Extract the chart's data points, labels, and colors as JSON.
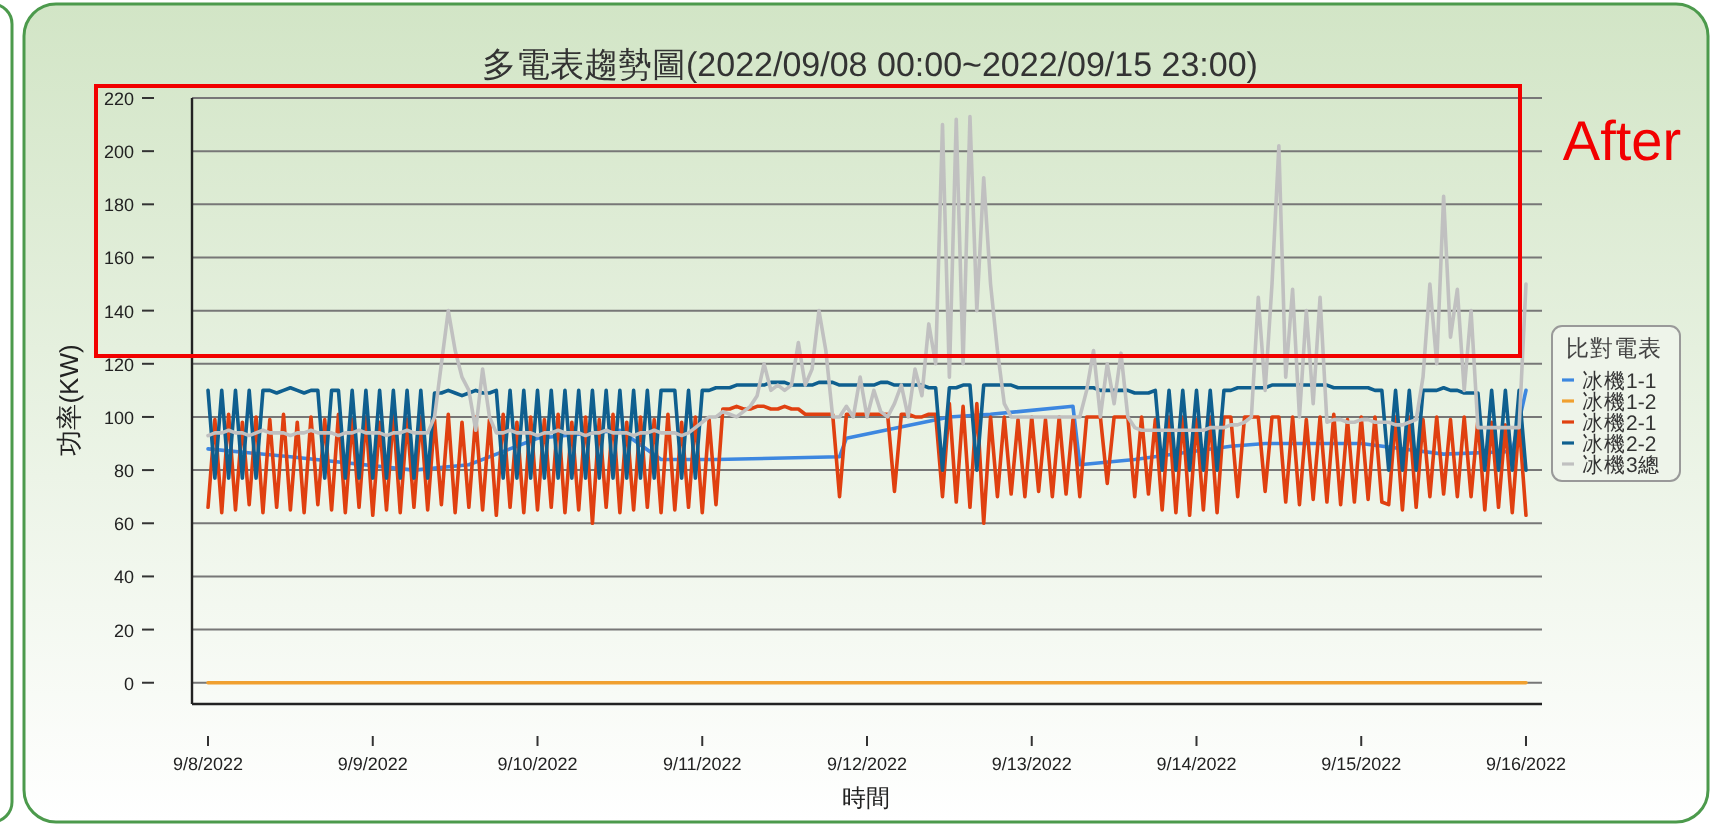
{
  "chart_data": {
    "type": "line",
    "title": "多電表趨勢圖(2022/09/08 00:00~2022/09/15 23:00)",
    "xlabel": "時間",
    "ylabel": "功率(KW)",
    "legend_title": "比對電表",
    "legend": "right",
    "grid": "y",
    "annotations": [
      "After"
    ],
    "xlim": [
      "2022-09-07T21:40",
      "2022-09-16T02:20"
    ],
    "xticks": [
      {
        "value": "2022-09-08",
        "label": "9/8/2022"
      },
      {
        "value": "2022-09-09",
        "label": "9/9/2022"
      },
      {
        "value": "2022-09-10",
        "label": "9/10/2022"
      },
      {
        "value": "2022-09-11",
        "label": "9/11/2022"
      },
      {
        "value": "2022-09-12",
        "label": "9/12/2022"
      },
      {
        "value": "2022-09-13",
        "label": "9/13/2022"
      },
      {
        "value": "2022-09-14",
        "label": "9/14/2022"
      },
      {
        "value": "2022-09-15",
        "label": "9/15/2022"
      },
      {
        "value": "2022-09-16",
        "label": "9/16/2022"
      }
    ],
    "ylim": [
      -8,
      220
    ],
    "yticks": [
      0,
      20,
      40,
      60,
      80,
      100,
      120,
      140,
      160,
      180,
      200,
      220
    ],
    "x": [
      "2022-09-08T00:00",
      "2022-09-08T01:00",
      "2022-09-08T02:00",
      "2022-09-08T03:00",
      "2022-09-08T04:00",
      "2022-09-08T05:00",
      "2022-09-08T06:00",
      "2022-09-08T07:00",
      "2022-09-08T08:00",
      "2022-09-08T09:00",
      "2022-09-08T10:00",
      "2022-09-08T11:00",
      "2022-09-08T12:00",
      "2022-09-08T13:00",
      "2022-09-08T14:00",
      "2022-09-08T15:00",
      "2022-09-08T16:00",
      "2022-09-08T17:00",
      "2022-09-08T18:00",
      "2022-09-08T19:00",
      "2022-09-08T20:00",
      "2022-09-08T21:00",
      "2022-09-08T22:00",
      "2022-09-08T23:00",
      "2022-09-09T00:00",
      "2022-09-09T01:00",
      "2022-09-09T02:00",
      "2022-09-09T03:00",
      "2022-09-09T04:00",
      "2022-09-09T05:00",
      "2022-09-09T06:00",
      "2022-09-09T07:00",
      "2022-09-09T08:00",
      "2022-09-09T09:00",
      "2022-09-09T10:00",
      "2022-09-09T11:00",
      "2022-09-09T12:00",
      "2022-09-09T13:00",
      "2022-09-09T14:00",
      "2022-09-09T15:00",
      "2022-09-09T16:00",
      "2022-09-09T17:00",
      "2022-09-09T18:00",
      "2022-09-09T19:00",
      "2022-09-09T20:00",
      "2022-09-09T21:00",
      "2022-09-09T22:00",
      "2022-09-09T23:00",
      "2022-09-10T00:00",
      "2022-09-10T01:00",
      "2022-09-10T02:00",
      "2022-09-10T03:00",
      "2022-09-10T04:00",
      "2022-09-10T05:00",
      "2022-09-10T06:00",
      "2022-09-10T07:00",
      "2022-09-10T08:00",
      "2022-09-10T09:00",
      "2022-09-10T10:00",
      "2022-09-10T11:00",
      "2022-09-10T12:00",
      "2022-09-10T13:00",
      "2022-09-10T14:00",
      "2022-09-10T15:00",
      "2022-09-10T16:00",
      "2022-09-10T17:00",
      "2022-09-10T18:00",
      "2022-09-10T19:00",
      "2022-09-10T20:00",
      "2022-09-10T21:00",
      "2022-09-10T22:00",
      "2022-09-10T23:00",
      "2022-09-11T00:00",
      "2022-09-11T01:00",
      "2022-09-11T02:00",
      "2022-09-11T03:00",
      "2022-09-11T04:00",
      "2022-09-11T05:00",
      "2022-09-11T06:00",
      "2022-09-11T07:00",
      "2022-09-11T08:00",
      "2022-09-11T09:00",
      "2022-09-11T10:00",
      "2022-09-11T11:00",
      "2022-09-11T12:00",
      "2022-09-11T13:00",
      "2022-09-11T14:00",
      "2022-09-11T15:00",
      "2022-09-11T16:00",
      "2022-09-11T17:00",
      "2022-09-11T18:00",
      "2022-09-11T19:00",
      "2022-09-11T20:00",
      "2022-09-11T21:00",
      "2022-09-11T22:00",
      "2022-09-11T23:00",
      "2022-09-12T00:00",
      "2022-09-12T01:00",
      "2022-09-12T02:00",
      "2022-09-12T03:00",
      "2022-09-12T04:00",
      "2022-09-12T05:00",
      "2022-09-12T06:00",
      "2022-09-12T07:00",
      "2022-09-12T08:00",
      "2022-09-12T09:00",
      "2022-09-12T10:00",
      "2022-09-12T11:00",
      "2022-09-12T12:00",
      "2022-09-12T13:00",
      "2022-09-12T14:00",
      "2022-09-12T15:00",
      "2022-09-12T16:00",
      "2022-09-12T17:00",
      "2022-09-12T18:00",
      "2022-09-12T19:00",
      "2022-09-12T20:00",
      "2022-09-12T21:00",
      "2022-09-12T22:00",
      "2022-09-12T23:00",
      "2022-09-13T00:00",
      "2022-09-13T01:00",
      "2022-09-13T02:00",
      "2022-09-13T03:00",
      "2022-09-13T04:00",
      "2022-09-13T05:00",
      "2022-09-13T06:00",
      "2022-09-13T07:00",
      "2022-09-13T08:00",
      "2022-09-13T09:00",
      "2022-09-13T10:00",
      "2022-09-13T11:00",
      "2022-09-13T12:00",
      "2022-09-13T13:00",
      "2022-09-13T14:00",
      "2022-09-13T15:00",
      "2022-09-13T16:00",
      "2022-09-13T17:00",
      "2022-09-13T18:00",
      "2022-09-13T19:00",
      "2022-09-13T20:00",
      "2022-09-13T21:00",
      "2022-09-13T22:00",
      "2022-09-13T23:00",
      "2022-09-14T00:00",
      "2022-09-14T01:00",
      "2022-09-14T02:00",
      "2022-09-14T03:00",
      "2022-09-14T04:00",
      "2022-09-14T05:00",
      "2022-09-14T06:00",
      "2022-09-14T07:00",
      "2022-09-14T08:00",
      "2022-09-14T09:00",
      "2022-09-14T10:00",
      "2022-09-14T11:00",
      "2022-09-14T12:00",
      "2022-09-14T13:00",
      "2022-09-14T14:00",
      "2022-09-14T15:00",
      "2022-09-14T16:00",
      "2022-09-14T17:00",
      "2022-09-14T18:00",
      "2022-09-14T19:00",
      "2022-09-14T20:00",
      "2022-09-14T21:00",
      "2022-09-14T22:00",
      "2022-09-14T23:00",
      "2022-09-15T00:00",
      "2022-09-15T01:00",
      "2022-09-15T02:00",
      "2022-09-15T03:00",
      "2022-09-15T04:00",
      "2022-09-15T05:00",
      "2022-09-15T06:00",
      "2022-09-15T07:00",
      "2022-09-15T08:00",
      "2022-09-15T09:00",
      "2022-09-15T10:00",
      "2022-09-15T11:00",
      "2022-09-15T12:00",
      "2022-09-15T13:00",
      "2022-09-15T14:00",
      "2022-09-15T15:00",
      "2022-09-15T16:00",
      "2022-09-15T17:00",
      "2022-09-15T18:00",
      "2022-09-15T19:00",
      "2022-09-15T20:00",
      "2022-09-15T21:00",
      "2022-09-15T22:00",
      "2022-09-15T23:00",
      "2022-09-16T00:00"
    ],
    "series": [
      {
        "name": "冰機1-1",
        "color": "#3d87e0",
        "x": [
          "2022-09-08T00:00",
          "2022-09-08T12:00",
          "2022-09-09T06:00",
          "2022-09-09T14:00",
          "2022-09-10T00:00",
          "2022-09-10T12:00",
          "2022-09-10T18:00",
          "2022-09-11T02:00",
          "2022-09-11T20:00",
          "2022-09-11T21:00",
          "2022-09-12T12:00",
          "2022-09-12T18:00",
          "2022-09-13T06:00",
          "2022-09-13T07:00",
          "2022-09-13T15:00",
          "2022-09-14T05:00",
          "2022-09-14T10:00",
          "2022-09-15T00:00",
          "2022-09-15T12:00",
          "2022-09-15T22:00",
          "2022-09-16T00:00"
        ],
        "values": [
          88,
          85,
          80,
          82,
          92,
          95,
          84,
          84,
          85,
          92,
          100,
          101,
          104,
          82,
          84,
          89,
          90,
          90,
          86,
          87,
          110
        ]
      },
      {
        "name": "冰機1-2",
        "color": "#f0a030",
        "x": [
          "2022-09-08T00:00",
          "2022-09-16T00:00"
        ],
        "values": [
          0,
          0
        ]
      },
      {
        "name": "冰機2-1",
        "color": "#e04010",
        "values": [
          66,
          99,
          64,
          101,
          65,
          98,
          67,
          100,
          64,
          99,
          66,
          101,
          65,
          98,
          64,
          100,
          67,
          99,
          65,
          101,
          64,
          99,
          66,
          100,
          63,
          98,
          65,
          101,
          64,
          99,
          66,
          100,
          65,
          99,
          67,
          101,
          64,
          98,
          66,
          100,
          65,
          99,
          63,
          101,
          66,
          98,
          64,
          100,
          65,
          99,
          66,
          101,
          64,
          98,
          65,
          100,
          60,
          99,
          66,
          101,
          64,
          98,
          65,
          100,
          66,
          99,
          64,
          101,
          65,
          98,
          66,
          100,
          64,
          99,
          67,
          103,
          103,
          104,
          103,
          103,
          104,
          104,
          103,
          103,
          104,
          103,
          103,
          101,
          101,
          101,
          101,
          101,
          70,
          101,
          101,
          101,
          101,
          101,
          101,
          101,
          72,
          101,
          101,
          100,
          100,
          101,
          101,
          70,
          105,
          68,
          104,
          66,
          105,
          60,
          100,
          70,
          100,
          71,
          99,
          70,
          100,
          72,
          99,
          70,
          100,
          71,
          99,
          70,
          100,
          100,
          100,
          75,
          100,
          100,
          100,
          70,
          100,
          71,
          99,
          65,
          100,
          64,
          100,
          63,
          99,
          65,
          100,
          64,
          100,
          100,
          70,
          100,
          100,
          100,
          72,
          100,
          100,
          68,
          100,
          67,
          99,
          69,
          100,
          68,
          101,
          67,
          99,
          68,
          100,
          69,
          100,
          68,
          67,
          100,
          65,
          100,
          66,
          99,
          70,
          100,
          71,
          99,
          70,
          100,
          70,
          99,
          65,
          98,
          66,
          97,
          64,
          98,
          63
        ]
      },
      {
        "name": "冰機2-2",
        "color": "#0f5f8f",
        "values": [
          110,
          77,
          110,
          77,
          110,
          77,
          110,
          77,
          110,
          110,
          109,
          110,
          111,
          110,
          109,
          110,
          110,
          77,
          110,
          110,
          77,
          110,
          77,
          110,
          77,
          110,
          77,
          110,
          77,
          110,
          77,
          110,
          77,
          109,
          109,
          110,
          109,
          108,
          109,
          110,
          109,
          109,
          110,
          77,
          110,
          77,
          110,
          77,
          110,
          77,
          110,
          77,
          110,
          77,
          110,
          77,
          110,
          77,
          110,
          77,
          110,
          77,
          110,
          77,
          110,
          77,
          110,
          110,
          110,
          77,
          110,
          77,
          110,
          110,
          111,
          111,
          111,
          112,
          112,
          112,
          112,
          112,
          113,
          113,
          113,
          112,
          112,
          112,
          112,
          113,
          113,
          113,
          112,
          112,
          112,
          112,
          112,
          112,
          113,
          113,
          112,
          112,
          112,
          112,
          112,
          111,
          111,
          80,
          111,
          111,
          112,
          112,
          80,
          112,
          112,
          112,
          112,
          112,
          111,
          111,
          111,
          111,
          111,
          111,
          111,
          111,
          111,
          111,
          111,
          111,
          110,
          110,
          110,
          110,
          110,
          109,
          109,
          109,
          110,
          80,
          110,
          80,
          110,
          80,
          110,
          80,
          110,
          80,
          110,
          110,
          111,
          111,
          111,
          111,
          111,
          112,
          112,
          112,
          112,
          112,
          112,
          112,
          112,
          112,
          111,
          111,
          111,
          111,
          111,
          111,
          110,
          110,
          80,
          110,
          80,
          110,
          80,
          110,
          110,
          110,
          111,
          110,
          110,
          109,
          109,
          109,
          80,
          110,
          80,
          110,
          80,
          110,
          80
        ]
      },
      {
        "name": "冰機3總",
        "color": "#c0c0c0",
        "values": [
          93,
          94,
          94,
          95,
          94,
          94,
          93,
          94,
          95,
          94,
          94,
          94,
          93,
          94,
          94,
          95,
          94,
          94,
          94,
          93,
          94,
          94,
          95,
          94,
          94,
          94,
          93,
          94,
          94,
          95,
          94,
          94,
          94,
          100,
          120,
          140,
          125,
          115,
          110,
          95,
          118,
          100,
          94,
          94,
          95,
          94,
          94,
          94,
          93,
          94,
          94,
          95,
          94,
          94,
          94,
          93,
          94,
          94,
          95,
          94,
          94,
          94,
          93,
          94,
          94,
          95,
          94,
          94,
          94,
          93,
          94,
          96,
          98,
          100,
          100,
          102,
          101,
          100,
          102,
          104,
          108,
          120,
          110,
          112,
          110,
          112,
          128,
          112,
          118,
          140,
          125,
          100,
          100,
          104,
          100,
          115,
          100,
          110,
          102,
          100,
          105,
          112,
          100,
          118,
          108,
          135,
          120,
          210,
          115,
          212,
          120,
          213,
          140,
          190,
          150,
          125,
          105,
          100,
          100,
          100,
          100,
          100,
          100,
          100,
          100,
          100,
          100,
          100,
          110,
          125,
          100,
          120,
          105,
          124,
          100,
          96,
          95,
          95,
          95,
          95,
          95,
          95,
          95,
          95,
          95,
          95,
          96,
          96,
          96,
          97,
          97,
          98,
          100,
          145,
          110,
          150,
          202,
          115,
          148,
          100,
          140,
          105,
          145,
          98,
          99,
          99,
          98,
          98,
          99,
          99,
          98,
          98,
          98,
          97,
          97,
          98,
          99,
          115,
          150,
          120,
          183,
          130,
          148,
          110,
          140,
          96,
          96,
          96,
          96,
          96,
          96,
          96,
          150
        ]
      }
    ]
  }
}
